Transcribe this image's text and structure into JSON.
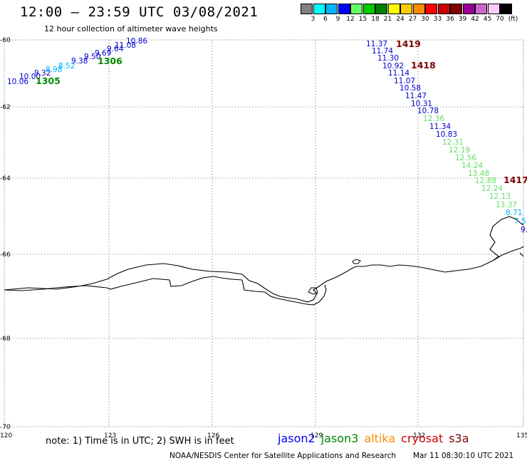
{
  "title": "12:00 – 23:59 UTC 03/08/2021",
  "subtitle": "12 hour collection of altimeter wave heights",
  "colorbar": {
    "unit": "(ft)",
    "colors": [
      "#808080",
      "#00ffff",
      "#00b4ff",
      "#0000ff",
      "#66ff66",
      "#00cc00",
      "#008000",
      "#ffff00",
      "#ffcc00",
      "#ff8c00",
      "#ff0000",
      "#cc0000",
      "#800000",
      "#990099",
      "#cc66cc",
      "#ffccff",
      "#000000"
    ],
    "labels": [
      "3",
      "6",
      "9",
      "12",
      "15",
      "18",
      "21",
      "24",
      "27",
      "30",
      "33",
      "36",
      "39",
      "42",
      "45",
      "70"
    ]
  },
  "axes": {
    "lon_ticks": [
      "120",
      "123",
      "126",
      "129",
      "132",
      "135"
    ],
    "lat_ticks": [
      "-60",
      "-62",
      "-64",
      "-66",
      "-68",
      "-70"
    ]
  },
  "tracks": [
    {
      "satellite": "jason3",
      "pass_labels": [
        "1305",
        "1306"
      ],
      "observations": [
        {
          "text": "10.06",
          "color": "#0000cc"
        },
        {
          "text": "10.00",
          "color": "#0000cc"
        },
        {
          "text": "9.32",
          "color": "#0000cc"
        },
        {
          "text": "8.98",
          "color": "#00b4ff"
        },
        {
          "text": "8.52",
          "color": "#00b4ff"
        },
        {
          "text": "9.38",
          "color": "#0000cc"
        },
        {
          "text": "9.50",
          "color": "#0000cc"
        },
        {
          "text": "9.69",
          "color": "#0000cc"
        },
        {
          "text": "9.64",
          "color": "#0000cc"
        },
        {
          "text": "11.08",
          "color": "#0000cc"
        },
        {
          "text": "10.86",
          "color": "#0000cc"
        }
      ]
    },
    {
      "satellite": "cryosat",
      "pass_labels": [
        "1419",
        "1418",
        "1417"
      ],
      "observations": [
        {
          "text": "11.37",
          "color": "#0000cc"
        },
        {
          "text": "11.74",
          "color": "#0000cc"
        },
        {
          "text": "11.30",
          "color": "#0000cc"
        },
        {
          "text": "10.92",
          "color": "#0000cc"
        },
        {
          "text": "11.14",
          "color": "#0000cc"
        },
        {
          "text": "11.07",
          "color": "#0000cc"
        },
        {
          "text": "10.58",
          "color": "#0000cc"
        },
        {
          "text": "11.47",
          "color": "#0000cc"
        },
        {
          "text": "10.31",
          "color": "#0000cc"
        },
        {
          "text": "10.78",
          "color": "#0000cc"
        },
        {
          "text": "12.36",
          "color": "#66dd66"
        },
        {
          "text": "11.34",
          "color": "#0000cc"
        },
        {
          "text": "10.83",
          "color": "#0000cc"
        },
        {
          "text": "12.31",
          "color": "#66dd66"
        },
        {
          "text": "12.19",
          "color": "#66dd66"
        },
        {
          "text": "12.56",
          "color": "#66dd66"
        },
        {
          "text": "14.24",
          "color": "#66dd66"
        },
        {
          "text": "13.48",
          "color": "#66dd66"
        },
        {
          "text": "12.88",
          "color": "#66dd66"
        },
        {
          "text": "12.24",
          "color": "#66dd66"
        },
        {
          "text": "12.13",
          "color": "#66dd66"
        },
        {
          "text": "13.37",
          "color": "#66dd66"
        },
        {
          "text": "8.71",
          "color": "#00b4ff"
        },
        {
          "text": "7.5",
          "color": "#00b4ff"
        },
        {
          "text": "9.",
          "color": "#0000cc"
        }
      ]
    }
  ],
  "note": "note: 1) Time is in UTC; 2) SWH is in feet",
  "legend": [
    {
      "name": "jason2",
      "color": "#0000ff"
    },
    {
      "name": "jason3",
      "color": "#008800"
    },
    {
      "name": "altika",
      "color": "#ff8c00"
    },
    {
      "name": "cryosat",
      "color": "#cc0000"
    },
    {
      "name": "s3a",
      "color": "#800000"
    }
  ],
  "credit": "NOAA/NESDIS Center for Satellite Applications and Research",
  "timestamp": "Mar 11 08:30:10 UTC 2021"
}
